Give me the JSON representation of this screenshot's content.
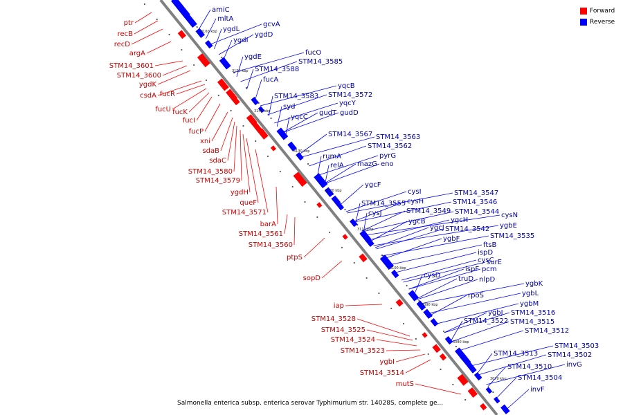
{
  "legend": {
    "forward": "Forward",
    "reverse": "Reverse"
  },
  "colors": {
    "forward": "#ff0000",
    "reverse": "#0000ff",
    "backbone": "#808080"
  },
  "caption": "Salmonella enterica subsp. enterica serovar Typhimurium str. 14028S, complete ge...",
  "ticks": [
    "3160 kbp",
    "3150 kbp",
    "3140 kbp",
    "3130 kbp",
    "3120 kbp",
    "3110 kbp",
    "3100 kbp",
    "3090 kbp",
    "3080 kbp",
    "3070 kbp"
  ],
  "forward_labels": [
    "ptr",
    "recB",
    "recD",
    "argA",
    "STM14_3601",
    "STM14_3600",
    "ygdK",
    "csdA",
    "fucR",
    "fucU",
    "fucK",
    "fucI",
    "fucP",
    "xni",
    "sdaB",
    "sdaC",
    "STM14_3580",
    "STM14_3579",
    "ygdH",
    "queF",
    "STM14_3571",
    "barA",
    "STM14_3561",
    "STM14_3560",
    "ptpS",
    "sopD",
    "iap",
    "STM14_3528",
    "STM14_3525",
    "STM14_3524",
    "STM14_3523",
    "ygbI",
    "STM14_3514",
    "mutS"
  ],
  "reverse_labels": [
    "amiC",
    "mltA",
    "ygdL",
    "gcvA",
    "ygdD",
    "ygdI",
    "ygdE",
    "fucO",
    "STM14_3585",
    "STM14_3588",
    "fucA",
    "yqcB",
    "STM14_3583",
    "STM14_3572",
    "syd",
    "yqcY",
    "yqcC",
    "gudT",
    "gudD",
    "STM14_3567",
    "STM14_3563",
    "STM14_3562",
    "rumA",
    "pyrG",
    "relA",
    "mazG",
    "eno",
    "ygcF",
    "cysI",
    "cysH",
    "STM14_3547",
    "STM14_3555",
    "STM14_3546",
    "cysJ",
    "STM14_3549",
    "STM14_3544",
    "ygcB",
    "cysN",
    "ygcH",
    "ygbE",
    "ygcJ",
    "STM14_3542",
    "ygbF",
    "STM14_3535",
    "ftsB",
    "ispD",
    "cysC",
    "surE",
    "ispF",
    "pcm",
    "cysD",
    "truD",
    "nlpD",
    "rpoS",
    "ygbK",
    "ygbL",
    "ygbM",
    "ygbJ",
    "STM14_3516",
    "STM14_3522",
    "STM14_3515",
    "STM14_3512",
    "STM14_3513",
    "STM14_3503",
    "STM14_3502",
    "invG",
    "STM14_3510",
    "STM14_3504",
    "invF"
  ]
}
